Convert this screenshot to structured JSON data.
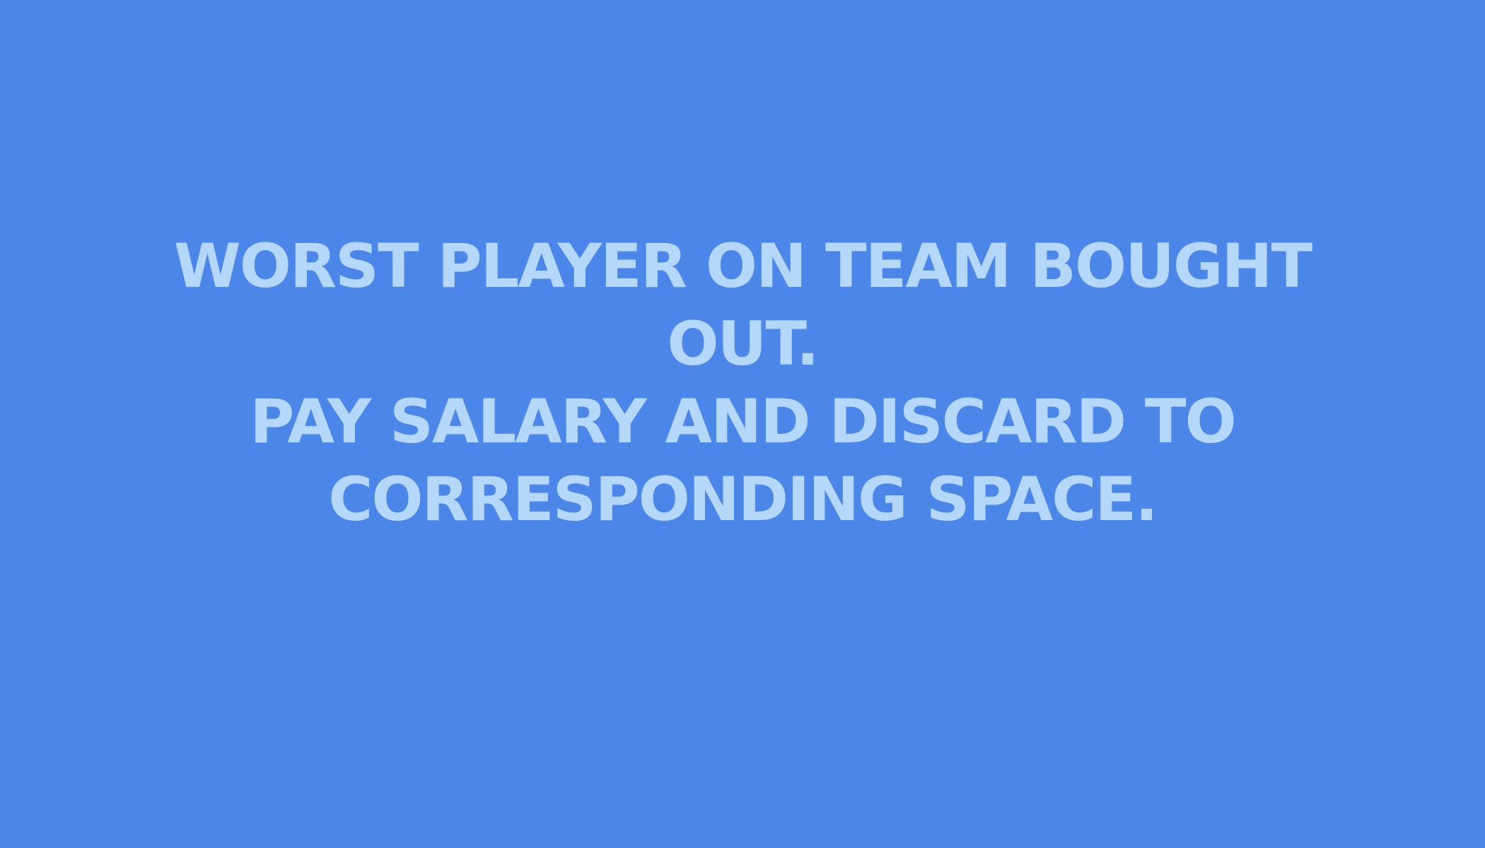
{
  "card": {
    "background_color": "#4a87e8",
    "text_color": "#b5d7f9",
    "lines": [
      "WORST PLAYER ON TEAM BOUGHT OUT.",
      "PAY SALARY AND DISCARD TO CORRESPONDING SPACE."
    ]
  }
}
